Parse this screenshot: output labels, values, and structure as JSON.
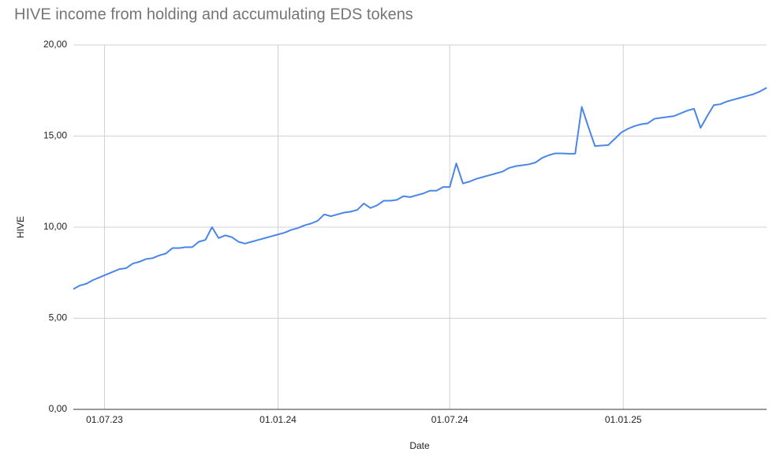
{
  "chart_data": {
    "type": "line",
    "title": "HIVE income from holding and accumulating EDS tokens",
    "x_label": "Date",
    "y_label": "HIVE",
    "x": [
      "2023-05-29",
      "2023-06-05",
      "2023-06-12",
      "2023-06-19",
      "2023-06-26",
      "2023-07-03",
      "2023-07-10",
      "2023-07-17",
      "2023-07-24",
      "2023-07-31",
      "2023-08-07",
      "2023-08-14",
      "2023-08-21",
      "2023-08-28",
      "2023-09-04",
      "2023-09-11",
      "2023-09-18",
      "2023-09-25",
      "2023-10-02",
      "2023-10-09",
      "2023-10-16",
      "2023-10-23",
      "2023-10-30",
      "2023-11-06",
      "2023-11-13",
      "2023-11-20",
      "2023-11-27",
      "2023-12-04",
      "2023-12-11",
      "2023-12-18",
      "2023-12-25",
      "2024-01-01",
      "2024-01-08",
      "2024-01-15",
      "2024-01-22",
      "2024-01-29",
      "2024-02-05",
      "2024-02-12",
      "2024-02-19",
      "2024-02-26",
      "2024-03-04",
      "2024-03-11",
      "2024-03-18",
      "2024-03-25",
      "2024-04-01",
      "2024-04-08",
      "2024-04-15",
      "2024-04-22",
      "2024-04-29",
      "2024-05-06",
      "2024-05-13",
      "2024-05-20",
      "2024-05-27",
      "2024-06-03",
      "2024-06-10",
      "2024-06-17",
      "2024-06-24",
      "2024-07-01",
      "2024-07-08",
      "2024-07-15",
      "2024-07-22",
      "2024-07-29",
      "2024-08-05",
      "2024-08-12",
      "2024-08-19",
      "2024-08-26",
      "2024-09-02",
      "2024-09-09",
      "2024-09-16",
      "2024-09-23",
      "2024-09-30",
      "2024-10-07",
      "2024-10-14",
      "2024-10-21",
      "2024-10-28",
      "2024-11-04",
      "2024-11-11",
      "2024-11-18",
      "2024-11-25",
      "2024-12-02",
      "2024-12-09",
      "2024-12-16",
      "2024-12-23",
      "2024-12-30",
      "2025-01-06",
      "2025-01-13",
      "2025-01-20",
      "2025-01-27",
      "2025-02-03",
      "2025-02-10",
      "2025-02-17",
      "2025-02-24",
      "2025-03-03",
      "2025-03-10",
      "2025-03-17",
      "2025-03-24",
      "2025-03-31",
      "2025-04-07",
      "2025-04-14",
      "2025-04-21",
      "2025-04-28",
      "2025-05-05",
      "2025-05-12",
      "2025-05-19",
      "2025-05-26",
      "2025-06-02"
    ],
    "series": [
      {
        "name": "HIVE",
        "color": "#4a86e8",
        "values": [
          6.6,
          6.8,
          6.9,
          7.1,
          7.25,
          7.4,
          7.55,
          7.7,
          7.75,
          8.0,
          8.1,
          8.25,
          8.3,
          8.45,
          8.55,
          8.85,
          8.85,
          8.9,
          8.9,
          9.2,
          9.3,
          10.0,
          9.4,
          9.55,
          9.45,
          9.2,
          9.1,
          9.2,
          9.3,
          9.4,
          9.5,
          9.6,
          9.7,
          9.85,
          9.95,
          10.1,
          10.2,
          10.35,
          10.7,
          10.6,
          10.7,
          10.8,
          10.85,
          10.95,
          11.3,
          11.05,
          11.2,
          11.45,
          11.45,
          11.5,
          11.7,
          11.65,
          11.75,
          11.85,
          12.0,
          12.0,
          12.2,
          12.2,
          13.5,
          12.4,
          12.5,
          12.65,
          12.75,
          12.85,
          12.95,
          13.05,
          13.25,
          13.35,
          13.4,
          13.45,
          13.55,
          13.8,
          13.95,
          14.05,
          14.05,
          14.03,
          14.03,
          16.6,
          15.5,
          14.45,
          14.48,
          14.5,
          14.85,
          15.2,
          15.4,
          15.55,
          15.65,
          15.7,
          15.95,
          16.0,
          16.05,
          16.1,
          16.25,
          16.4,
          16.5,
          15.45,
          16.1,
          16.7,
          16.75,
          16.9,
          17.0,
          17.1,
          17.2,
          17.3,
          17.45,
          17.65
        ]
      }
    ],
    "xlim": [
      "2023-05-29",
      "2025-06-02"
    ],
    "xticks": [
      {
        "value": "2023-07-01",
        "label": "01.07.23"
      },
      {
        "value": "2024-01-01",
        "label": "01.01.24"
      },
      {
        "value": "2024-07-01",
        "label": "01.07.24"
      },
      {
        "value": "2025-01-01",
        "label": "01.01.25"
      }
    ],
    "ylim": [
      0,
      20
    ],
    "yticks": [
      {
        "value": 0,
        "label": "0,00"
      },
      {
        "value": 5,
        "label": "5,00"
      },
      {
        "value": 10,
        "label": "10,00"
      },
      {
        "value": 15,
        "label": "15,00"
      },
      {
        "value": 20,
        "label": "20,00"
      }
    ],
    "grid": true
  }
}
